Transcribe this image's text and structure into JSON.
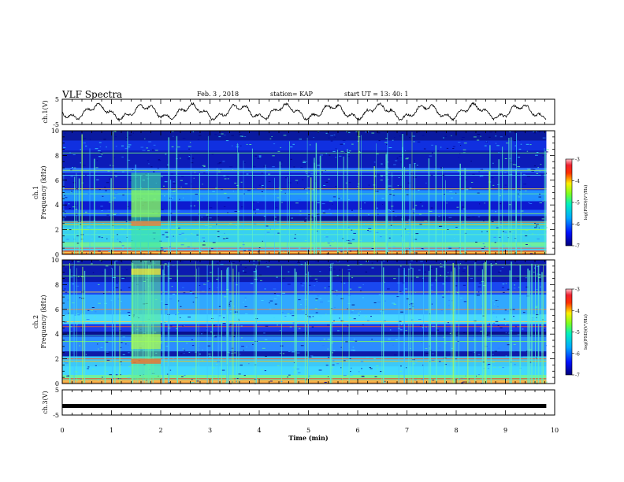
{
  "header": {
    "title": "VLF Spectra",
    "date": "Feb. 3 , 2018",
    "station": "station= KAP",
    "start": "start UT = 13: 40: 1"
  },
  "chart_data": [
    {
      "type": "line",
      "name": "ch1-waveform",
      "ylabel": "ch.1(V)",
      "ylim": [
        -5,
        5
      ],
      "yticks": [
        "5",
        "-5"
      ],
      "xlim": [
        0,
        10
      ],
      "data_extent_min": 9.83,
      "description_of_values": "oscillating trace about 0 V, amplitude roughly ±3 V"
    },
    {
      "type": "heatmap",
      "name": "ch1-spectrogram",
      "ylabel": "ch.1 Frequency (kHz)",
      "ylim": [
        0,
        10
      ],
      "yticks": [
        "0",
        "2",
        "4",
        "6",
        "8",
        "10"
      ],
      "xlim": [
        0,
        10
      ],
      "colorbar": {
        "label": "log(PSD)(V²/Hz)",
        "ticks": [
          "-3",
          "-4",
          "-5",
          "-6",
          "-7"
        ],
        "range": [
          -7,
          -3
        ]
      },
      "enhanced_interval_min": [
        1.4,
        2.0
      ]
    },
    {
      "type": "heatmap",
      "name": "ch2-spectrogram",
      "ylabel": "ch.2 Frequency (kHz)",
      "ylim": [
        0,
        10
      ],
      "yticks": [
        "0",
        "2",
        "4",
        "6",
        "8",
        "10"
      ],
      "xlim": [
        0,
        10
      ],
      "colorbar": {
        "label": "log(PSD)(V²/Hz)",
        "ticks": [
          "-3",
          "-4",
          "-5",
          "-6",
          "-7"
        ],
        "range": [
          -7,
          -3
        ]
      },
      "enhanced_interval_min": [
        1.4,
        2.0
      ]
    },
    {
      "type": "line",
      "name": "ch3-waveform",
      "ylabel": "ch.3(V)",
      "ylim": [
        -5,
        5
      ],
      "yticks": [
        "5",
        "-5"
      ],
      "xlim": [
        0,
        10
      ],
      "y": [
        -1.4,
        -1.4
      ],
      "x": [
        0,
        9.83
      ]
    }
  ],
  "xaxis": {
    "label": "Time (min)",
    "ticks": [
      "0",
      "1",
      "2",
      "3",
      "4",
      "5",
      "6",
      "7",
      "8",
      "9",
      "10"
    ]
  }
}
